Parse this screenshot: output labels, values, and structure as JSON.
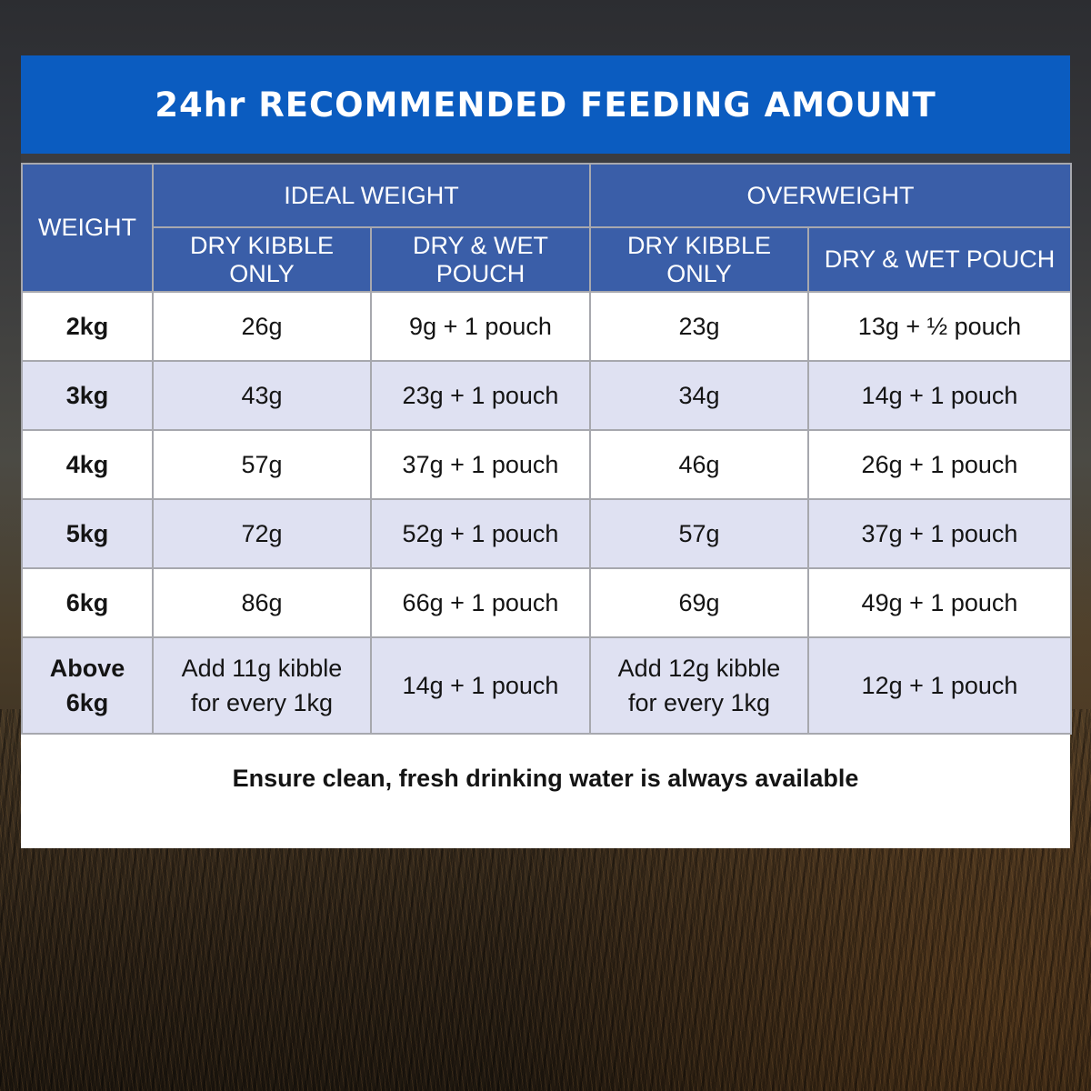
{
  "title": "24hr RECOMMENDED FEEDING AMOUNT",
  "headers": {
    "weight": "WEIGHT",
    "ideal_weight": "IDEAL WEIGHT",
    "overweight": "OVERWEIGHT",
    "ideal_dry": "DRY KIBBLE ONLY",
    "ideal_wet": "DRY & WET POUCH",
    "over_dry": "DRY KIBBLE ONLY",
    "over_wet": "DRY & WET POUCH"
  },
  "rows": [
    {
      "weight": "2kg",
      "ideal_dry": "26g",
      "ideal_wet": "9g + 1 pouch",
      "over_dry": "23g",
      "over_wet": "13g + ½ pouch"
    },
    {
      "weight": "3kg",
      "ideal_dry": "43g",
      "ideal_wet": "23g + 1 pouch",
      "over_dry": "34g",
      "over_wet": "14g + 1 pouch"
    },
    {
      "weight": "4kg",
      "ideal_dry": "57g",
      "ideal_wet": "37g + 1 pouch",
      "over_dry": "46g",
      "over_wet": "26g + 1 pouch"
    },
    {
      "weight": "5kg",
      "ideal_dry": "72g",
      "ideal_wet": "52g + 1 pouch",
      "over_dry": "57g",
      "over_wet": "37g + 1 pouch"
    },
    {
      "weight": "6kg",
      "ideal_dry": "86g",
      "ideal_wet": "66g + 1 pouch",
      "over_dry": "69g",
      "over_wet": "49g + 1 pouch"
    }
  ],
  "last_row": {
    "weight_line1": "Above",
    "weight_line2": "6kg",
    "ideal_dry_line1": "Add 11g kibble",
    "ideal_dry_line2": "for every 1kg",
    "ideal_wet": "14g + 1 pouch",
    "over_dry_line1": "Add 12g kibble",
    "over_dry_line2": "for every 1kg",
    "over_wet": "12g + 1 pouch"
  },
  "footnote": "Ensure clean, fresh drinking water is always available"
}
